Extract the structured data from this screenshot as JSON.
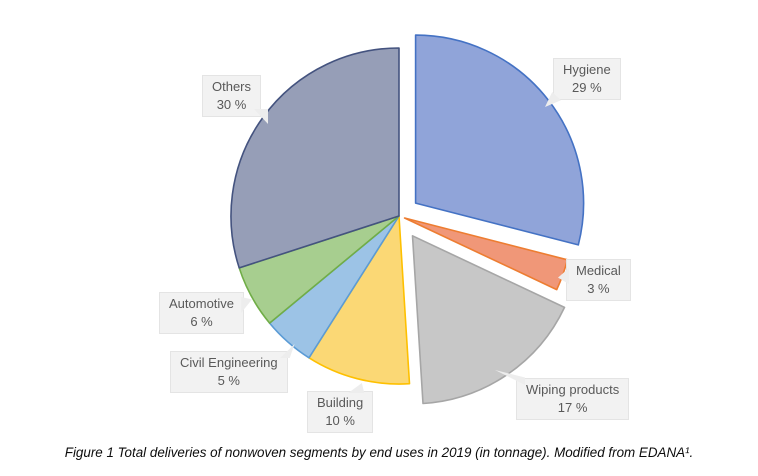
{
  "chart_data": {
    "type": "pie",
    "title": "",
    "legend": "none",
    "labels": "callouts",
    "value_format": "percent with space, e.g. 29 %",
    "direction": "clockwise",
    "start_angle_deg": 0,
    "slices": [
      {
        "label": "Hygiene",
        "value": 29,
        "pct_label": "29 %",
        "fill": "#90a4d9",
        "stroke": "#4472c4",
        "explode": 21
      },
      {
        "label": "Medical",
        "value": 3,
        "pct_label": "3 %",
        "fill": "#f09778",
        "stroke": "#ed7d31",
        "explode": 6
      },
      {
        "label": "Wiping products",
        "value": 17,
        "pct_label": "17 %",
        "fill": "#c7c7c7",
        "stroke": "#a6a6a6",
        "explode": 24
      },
      {
        "label": "Building",
        "value": 10,
        "pct_label": "10 %",
        "fill": "#fbd875",
        "stroke": "#fec000",
        "explode": 0
      },
      {
        "label": "Civil Engineering",
        "value": 5,
        "pct_label": "5 %",
        "fill": "#9cc3e6",
        "stroke": "#5b9bd5",
        "explode": 0
      },
      {
        "label": "Automotive",
        "value": 6,
        "pct_label": "6 %",
        "fill": "#a7ce8f",
        "stroke": "#70ad47",
        "explode": 0
      },
      {
        "label": "Others",
        "value": 30,
        "pct_label": "30 %",
        "fill": "#969eb7",
        "stroke": "#44537f",
        "explode": 0
      }
    ],
    "label_style": {
      "box_fill": "#f2f2f2",
      "box_border": "#e4e4e4",
      "text_color": "#595959"
    }
  },
  "caption": {
    "text": "Figure 1 Total deliveries of nonwoven segments by end uses in 2019 (in tonnage). Modified from EDANA¹."
  }
}
